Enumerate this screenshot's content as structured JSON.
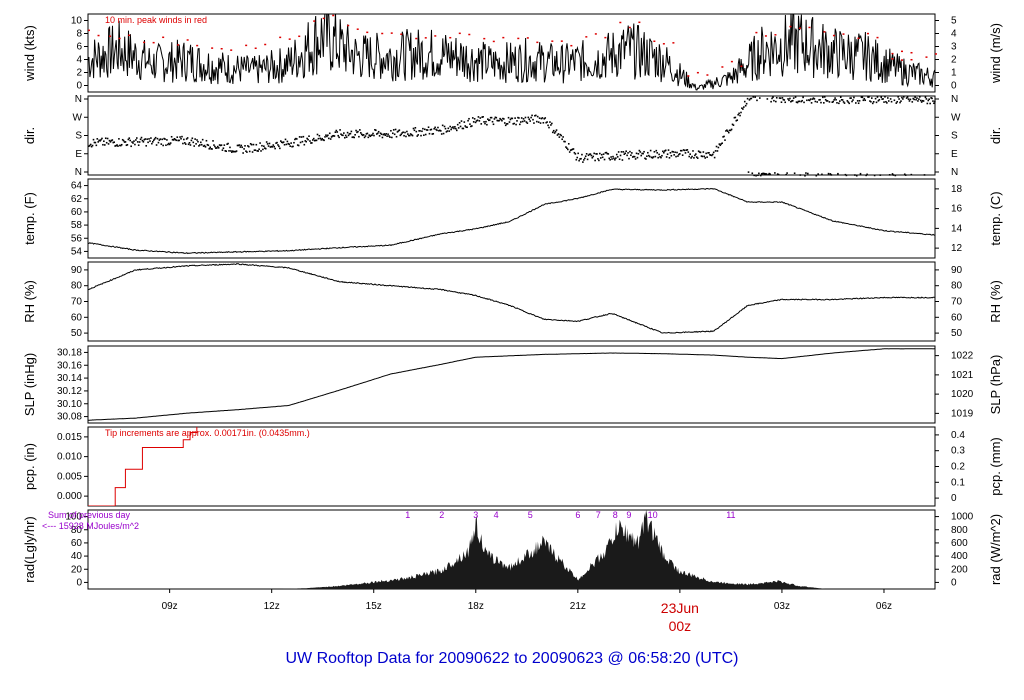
{
  "footer": {
    "prefix": "UW Rooftop Data for",
    "start": "20090622",
    "to": "to",
    "end": "20090623 @ 06:58:20",
    "zone": "(UTC)"
  },
  "wind_note": "10 min. peak winds in red",
  "rain_note": "Tip increments are approx. 0.00171in. (0.0435mm.)",
  "rad_note": {
    "line1": "Sum of previous day",
    "line2": "<--- 15928 MJoules/m^2"
  },
  "date_marker": {
    "day": "23Jun",
    "hour": "00z",
    "color": "#cc0000"
  },
  "colors": {
    "series": "#000000",
    "peak_wind": "#dd0000",
    "precip": "#dd0000",
    "rad_fill": "#1a1a1a",
    "rad_markers": "#9900cc",
    "footer": "#0000cc"
  },
  "x_axis": {
    "ticks": [
      {
        "label": "09z",
        "hours": 9
      },
      {
        "label": "12z",
        "hours": 12
      },
      {
        "label": "15z",
        "hours": 15
      },
      {
        "label": "18z",
        "hours": 18
      },
      {
        "label": "21z",
        "hours": 21
      },
      {
        "label": "03z",
        "hours": 27
      },
      {
        "label": "06z",
        "hours": 30
      }
    ]
  },
  "chart_data": [
    {
      "id": "wind",
      "type": "line",
      "left_label": "wind (kts)",
      "right_label": "wind (m/s)",
      "left_ticks": [
        "0",
        "2",
        "4",
        "6",
        "8",
        "10"
      ],
      "right_ticks": [
        "0",
        "1",
        "2",
        "3",
        "4",
        "5"
      ],
      "ylim": [
        0,
        11
      ],
      "x": [
        6.6,
        7.5,
        8.5,
        9.5,
        10.5,
        11.5,
        12.5,
        13.5,
        14.5,
        15.5,
        16.5,
        17.5,
        18.5,
        19.5,
        20.5,
        21.5,
        22.5,
        23.5,
        24.5,
        25.5,
        26.5,
        27.5,
        28.5,
        29.5,
        30.5,
        31.5,
        30.5
      ],
      "values": [
        4.5,
        6.0,
        4.0,
        4.5,
        3.5,
        3.0,
        4.0,
        8.0,
        5.0,
        5.0,
        5.5,
        5.0,
        4.0,
        4.5,
        4.0,
        4.5,
        6.0,
        4.5,
        0.5,
        2.0,
        6.0,
        7.0,
        5.5,
        5.0,
        3.0,
        2.0,
        3.0
      ],
      "peaks": [
        8.5,
        8.0,
        7.5,
        7.0,
        6.5,
        6.5,
        7.5,
        10.5,
        9.0,
        8.0,
        8.0,
        8.0,
        7.5,
        7.5,
        7.0,
        8.0,
        9.5,
        7.0,
        2.5,
        4.0,
        8.5,
        9.0,
        8.5,
        8.0,
        6.0,
        5.0,
        5.0
      ]
    },
    {
      "id": "dir",
      "type": "scatter",
      "left_label": "dir.",
      "right_label": "dir.",
      "left_ticks": [
        "N",
        "E",
        "S",
        "W",
        "N"
      ],
      "right_ticks": [
        "N",
        "E",
        "S",
        "W",
        "N"
      ],
      "ylim": [
        0,
        360
      ],
      "x": [
        6.6,
        8.0,
        9.5,
        11.0,
        12.5,
        14.0,
        15.5,
        17.0,
        18.0,
        19.0,
        20.0,
        21.0,
        22.0,
        23.5,
        25.0,
        26.0,
        27.0,
        28.5,
        30.0,
        31.5
      ],
      "values": [
        150,
        155,
        160,
        120,
        150,
        190,
        190,
        210,
        250,
        250,
        260,
        80,
        90,
        100,
        100,
        360,
        355,
        350,
        350,
        345
      ]
    },
    {
      "id": "temp",
      "type": "line",
      "left_label": "temp. (F)",
      "right_label": "temp. (C)",
      "left_ticks": [
        "54",
        "56",
        "58",
        "60",
        "62",
        "64"
      ],
      "right_ticks": [
        "12",
        "14",
        "16",
        "18"
      ],
      "ylim": [
        52.5,
        65.5
      ],
      "x": [
        6.6,
        8.0,
        9.5,
        11.0,
        12.5,
        14.0,
        15.5,
        17.0,
        18.0,
        19.0,
        20.0,
        21.0,
        22.0,
        23.5,
        25.0,
        26.0,
        27.0,
        28.5,
        30.0,
        31.5
      ],
      "values": [
        55.0,
        53.8,
        53.3,
        53.5,
        53.7,
        54.2,
        54.6,
        56.5,
        57.3,
        58.5,
        61.3,
        62.3,
        63.8,
        63.7,
        63.9,
        61.7,
        61.7,
        58.6,
        57.0,
        56.3
      ]
    },
    {
      "id": "rh",
      "type": "line",
      "left_label": "RH (%)",
      "right_label": "RH (%)",
      "left_ticks": [
        "50",
        "60",
        "70",
        "80",
        "90"
      ],
      "right_ticks": [
        "50",
        "60",
        "70",
        "80",
        "90"
      ],
      "ylim": [
        50,
        90
      ],
      "x": [
        6.6,
        8.0,
        9.5,
        11.0,
        12.5,
        14.0,
        15.5,
        17.0,
        18.0,
        19.0,
        20.0,
        21.0,
        22.0,
        23.5,
        25.0,
        26.0,
        27.0,
        28.5,
        30.0,
        31.5
      ],
      "values": [
        76,
        86,
        88,
        89,
        87,
        80,
        78,
        76,
        73,
        68,
        61,
        60,
        64,
        54,
        55,
        68,
        71,
        71,
        72,
        72
      ]
    },
    {
      "id": "slp",
      "type": "line",
      "left_label": "SLP (inHg)",
      "right_label": "SLP (hPa)",
      "left_ticks": [
        "30.08",
        "30.10",
        "30.12",
        "30.14",
        "30.16",
        "30.18"
      ],
      "right_ticks": [
        "1019",
        "1020",
        "1021",
        "1022"
      ],
      "ylim": [
        30.078,
        30.188
      ],
      "x": [
        6.6,
        8.0,
        9.5,
        11.0,
        12.5,
        14.0,
        15.5,
        17.0,
        18.0,
        19.0,
        20.0,
        21.0,
        22.0,
        23.5,
        25.0,
        26.0,
        27.0,
        28.5,
        30.0,
        31.5
      ],
      "values": [
        30.082,
        30.085,
        30.092,
        30.097,
        30.103,
        30.125,
        30.148,
        30.162,
        30.172,
        30.174,
        30.176,
        30.177,
        30.178,
        30.177,
        30.175,
        30.172,
        30.17,
        30.178,
        30.184,
        30.184
      ]
    },
    {
      "id": "pcp",
      "type": "line",
      "left_label": "pcp. (in)",
      "right_label": "pcp. (mm)",
      "left_ticks": [
        "0.000",
        "0.005",
        "0.010",
        "0.015"
      ],
      "right_ticks": [
        "0",
        "0.1",
        "0.2",
        "0.3",
        "0.4"
      ],
      "ylim": [
        0,
        0.0185
      ],
      "x": [
        6.6,
        7.0,
        7.4,
        7.7,
        8.2,
        9.1,
        9.4,
        9.6,
        9.8
      ],
      "values": [
        0.0,
        0.0,
        0.0043,
        0.0086,
        0.0137,
        0.0137,
        0.0155,
        0.0172,
        0.0185
      ]
    },
    {
      "id": "rad",
      "type": "area",
      "left_label": "rad(Lgly/hr)",
      "right_label": "rad (W/m^2)",
      "left_ticks": [
        "0",
        "20",
        "40",
        "60",
        "80",
        "100"
      ],
      "right_ticks": [
        "0",
        "200",
        "400",
        "600",
        "800",
        "1000"
      ],
      "ylim": [
        0,
        100
      ],
      "x": [
        6.6,
        9.5,
        12.2,
        13.0,
        14.0,
        15.0,
        16.0,
        17.0,
        17.8,
        18.0,
        18.3,
        19.0,
        20.0,
        21.0,
        21.8,
        22.2,
        22.8,
        23.0,
        23.5,
        24.0,
        25.0,
        26.0,
        26.9,
        27.5,
        28.3,
        31.5
      ],
      "values": [
        0,
        0,
        0,
        1,
        4,
        9,
        14,
        24,
        50,
        85,
        45,
        28,
        60,
        12,
        48,
        80,
        60,
        95,
        45,
        22,
        9,
        6,
        10,
        4,
        0,
        0
      ],
      "event_markers": [
        {
          "label": "1",
          "x": 16.0
        },
        {
          "label": "2",
          "x": 17.0
        },
        {
          "label": "3",
          "x": 18.0
        },
        {
          "label": "4",
          "x": 18.6
        },
        {
          "label": "5",
          "x": 19.6
        },
        {
          "label": "6",
          "x": 21.0
        },
        {
          "label": "7",
          "x": 21.6
        },
        {
          "label": "8",
          "x": 22.1
        },
        {
          "label": "9",
          "x": 22.5
        },
        {
          "label": "10",
          "x": 23.2
        },
        {
          "label": "11",
          "x": 25.5
        }
      ]
    }
  ]
}
